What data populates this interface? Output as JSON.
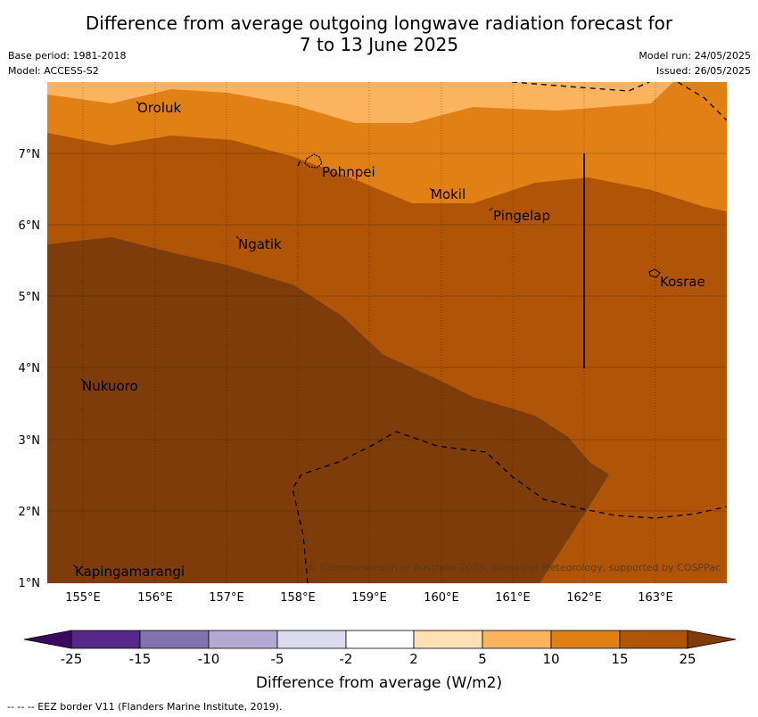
{
  "title": {
    "line1": "Difference from average outgoing longwave radiation forecast for",
    "line2": "7 to 13 June 2025"
  },
  "meta": {
    "base_period": "Base period: 1981-2018",
    "model": "Model: ACCESS-S2",
    "model_run": "Model run: 24/05/2025",
    "issued": "Issued: 26/05/2025"
  },
  "map": {
    "lat_labels": [
      "7°N",
      "6°N",
      "5°N",
      "4°N",
      "3°N",
      "2°N",
      "1°N"
    ],
    "lon_labels": [
      "155°E",
      "156°E",
      "157°E",
      "158°E",
      "159°E",
      "160°E",
      "161°E",
      "162°E",
      "163°E"
    ],
    "places": [
      "Oroluk",
      "Pohnpei",
      "Mokil",
      "Pingelap",
      "Ngatik",
      "Kosrae",
      "Nukuoro",
      "Kapingamarangi"
    ],
    "copyright": "© Commonwealth of Australia 2025, Bureau of Meteorology, supported by COSPPac",
    "colors": {
      "band_5_10": "#fbb35e",
      "band_10_15": "#e08015",
      "band_15_25": "#b05508",
      "band_25_plus": "#7d3c09"
    }
  },
  "colorbar": {
    "ticks": [
      "-25",
      "-15",
      "-10",
      "-5",
      "-2",
      "2",
      "5",
      "10",
      "15",
      "25"
    ],
    "colors": [
      "#3a0a5e",
      "#55288a",
      "#8173ad",
      "#b3a9d3",
      "#dcdaed",
      "#ffffff",
      "#fee0b5",
      "#fbb35e",
      "#e08015",
      "#b05508",
      "#7d3c09"
    ],
    "title": "Difference from average (W/m2)"
  },
  "footnote": "--  --  -- EEZ border V11 (Flanders Marine Institute, 2019)."
}
